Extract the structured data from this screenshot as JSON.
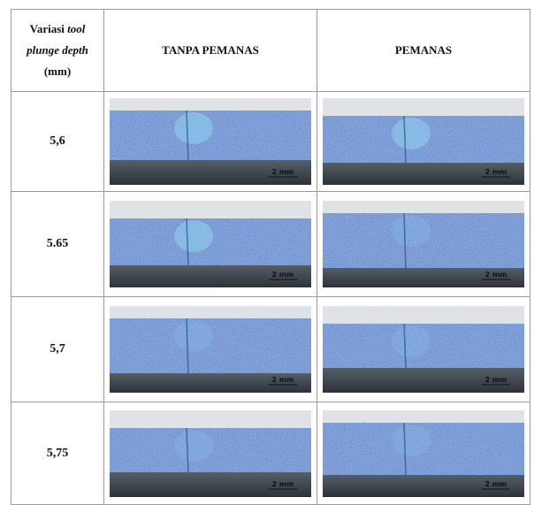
{
  "table": {
    "header": {
      "variasi": "Variasi",
      "italic": "tool",
      "italic2": "plunge depth",
      "unit": "(mm)",
      "col2": "TANPA PEMANAS",
      "col3": "PEMANAS"
    },
    "rows": [
      {
        "depth": "5,6",
        "scale_left": "2 mm",
        "scale_right": "2 mm"
      },
      {
        "depth": "5.65",
        "scale_left": "2 mm",
        "scale_right": "2 mm"
      },
      {
        "depth": "5,7",
        "scale_left": "2 mm",
        "scale_right": "2 mm"
      },
      {
        "depth": "5,75",
        "scale_left": "2 mm",
        "scale_right": "2 mm"
      }
    ]
  }
}
